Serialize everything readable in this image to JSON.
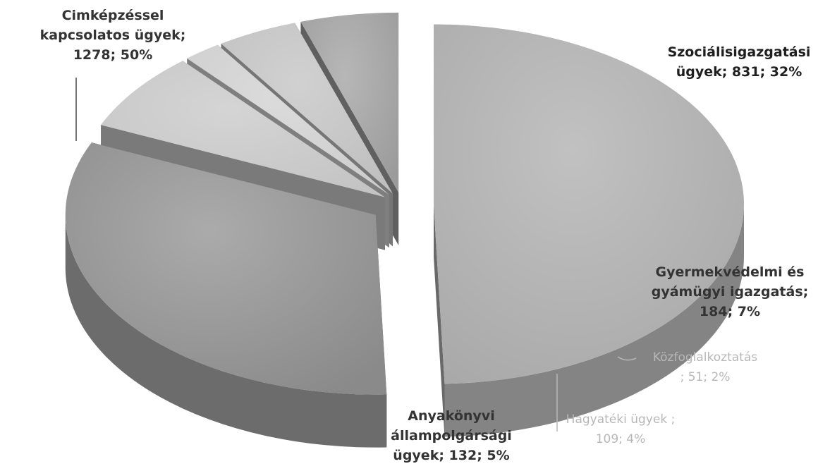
{
  "chart_data": {
    "type": "pie",
    "style": "3d-exploded",
    "title": "",
    "legend": "none",
    "slices": [
      {
        "category": "Cimképzéssel kapcsolatos ügyek",
        "value": 1278,
        "percent": "50%",
        "label_lines": [
          "Cimképzéssel",
          "kapcsolatos ügyek;",
          "1278; 50%"
        ],
        "color": "#a9a9a9"
      },
      {
        "category": "Szociálisigazgatási ügyek",
        "value": 831,
        "percent": "32%",
        "label_lines": [
          "Szociálisigazgatási",
          "ügyek; 831; 32%"
        ],
        "color": "#8a8a8a"
      },
      {
        "category": "Gyermekvédelmi és gyámügyi igazgatás",
        "value": 184,
        "percent": "7%",
        "label_lines": [
          "Gyermekvédelmi és",
          "gyámügyi igazgatás;",
          "184; 7%"
        ],
        "color": "#c4c4c4"
      },
      {
        "category": "Közfoglalkoztatás",
        "value": 51,
        "percent": "2%",
        "label_lines": [
          "Közfoglalkoztatás",
          "; 51; 2%"
        ],
        "color": "#cdcdcd"
      },
      {
        "category": "Hagyatéki ügyek",
        "value": 109,
        "percent": "4%",
        "label_lines": [
          "Hagyatéki ügyek ;",
          "109; 4%"
        ],
        "color": "#bfbfbf"
      },
      {
        "category": "Anyakönyvi állampolgársági ügyek",
        "value": 132,
        "percent": "5%",
        "label_lines": [
          "Anyakönyvi",
          "állampolgársági",
          "ügyek; 132; 5%"
        ],
        "color": "#9b9b9b"
      }
    ]
  }
}
